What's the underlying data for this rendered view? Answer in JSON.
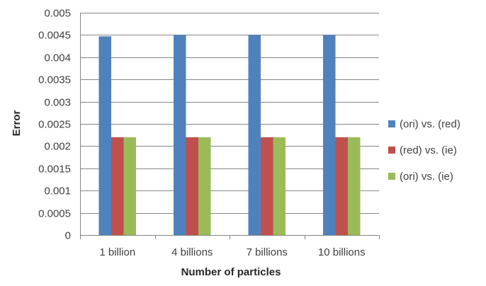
{
  "chart_data": {
    "type": "bar",
    "title": "",
    "xlabel": "Number of particles",
    "ylabel": "Error",
    "ylim": [
      0,
      0.005
    ],
    "yticks": [
      "0",
      "0.0005",
      "0.001",
      "0.0015",
      "0.002",
      "0.0025",
      "0.003",
      "0.0035",
      "0.004",
      "0.0045",
      "0.005"
    ],
    "categories": [
      "1 billion",
      "4 billions",
      "7 billions",
      "10 billions"
    ],
    "series": [
      {
        "name": "(ori) vs. (red)",
        "color": "#4f81bd",
        "values": [
          0.00447,
          0.0045,
          0.0045,
          0.0045
        ]
      },
      {
        "name": "(red) vs. (ie)",
        "color": "#c0504d",
        "values": [
          0.0022,
          0.0022,
          0.0022,
          0.0022
        ]
      },
      {
        "name": "(ori) vs. (ie)",
        "color": "#9bbb59",
        "values": [
          0.0022,
          0.0022,
          0.0022,
          0.0022
        ]
      }
    ],
    "grid": true,
    "legend_position": "right"
  }
}
